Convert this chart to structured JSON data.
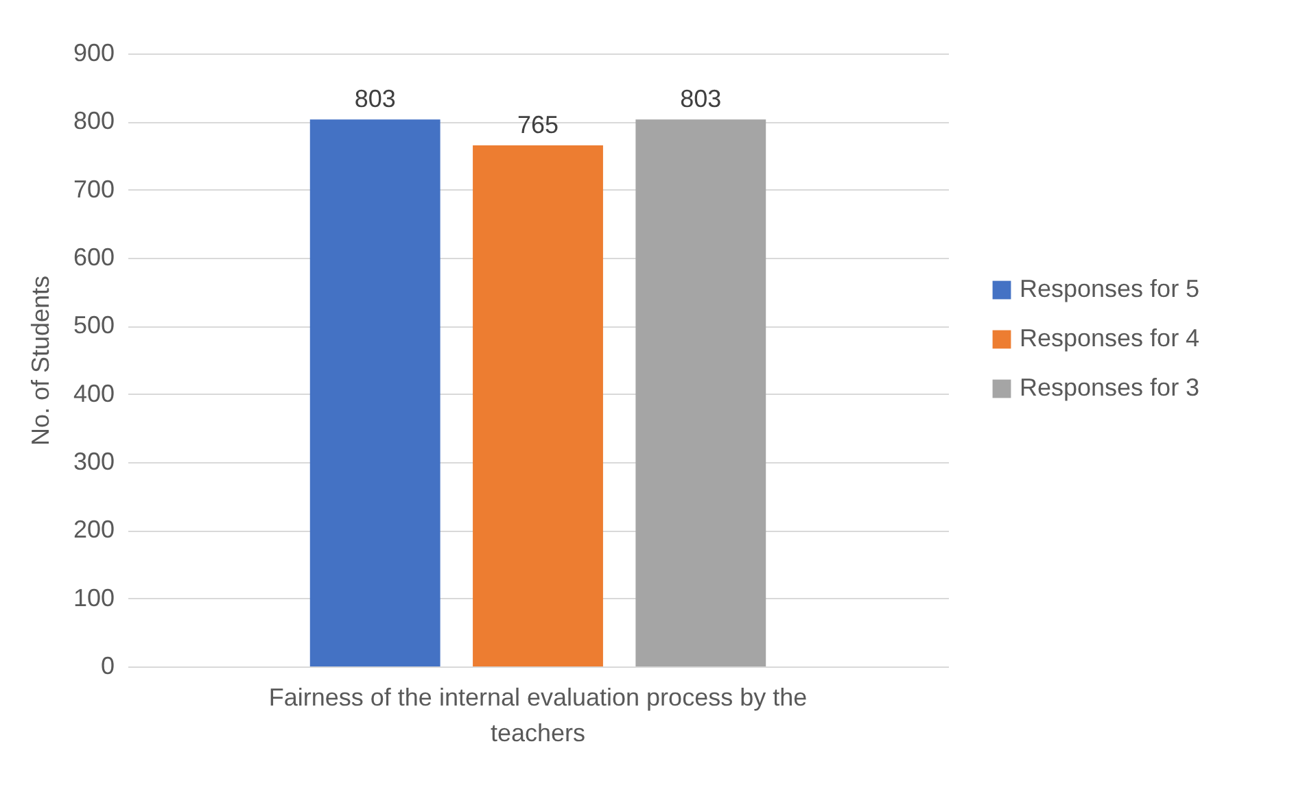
{
  "chart_data": {
    "type": "bar",
    "ylabel": "No. of Students",
    "categories": [
      "Fairness of the internal evaluation process by the teachers"
    ],
    "series": [
      {
        "name": "Responses for 5",
        "color": "#4472c4",
        "values": [
          803
        ]
      },
      {
        "name": "Responses for 4",
        "color": "#ed7d31",
        "values": [
          765
        ]
      },
      {
        "name": "Responses for 3",
        "color": "#a5a5a5",
        "values": [
          803
        ]
      }
    ],
    "ylim": [
      0,
      900
    ],
    "yticks": [
      0,
      100,
      200,
      300,
      400,
      500,
      600,
      700,
      800,
      900
    ],
    "grid": "y",
    "legend": "right",
    "data_labels": true
  }
}
